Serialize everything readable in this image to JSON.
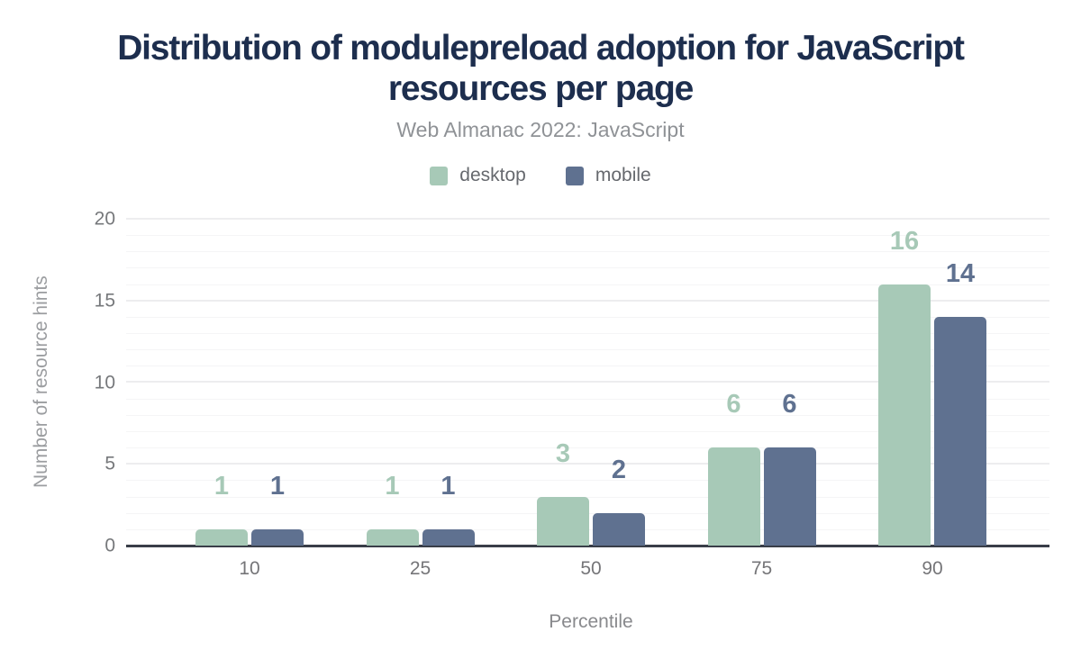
{
  "title": "Distribution of modulepreload adoption for JavaScript resources per page",
  "subtitle": "Web Almanac 2022: JavaScript",
  "chart_data": {
    "type": "bar",
    "categories": [
      "10",
      "25",
      "50",
      "75",
      "90"
    ],
    "series": [
      {
        "name": "desktop",
        "color": "#a7c9b7",
        "values": [
          1,
          1,
          3,
          6,
          16
        ]
      },
      {
        "name": "mobile",
        "color": "#5f7190",
        "values": [
          1,
          1,
          2,
          6,
          14
        ]
      }
    ],
    "title": "Distribution of modulepreload adoption for JavaScript resources per page",
    "subtitle": "Web Almanac 2022: JavaScript",
    "xlabel": "Percentile",
    "ylabel": "Number of resource hints",
    "ylim": [
      0,
      20
    ],
    "yticks": [
      0,
      5,
      10,
      15,
      20
    ],
    "grid": "horizontal, minor line every 1 unit, major line every 5 units",
    "legend_position": "top center",
    "value_labels_shown": true
  },
  "colors": {
    "background": "#ffffff",
    "title_text": "#1d2e4e",
    "subtitle_text": "#8f9296",
    "legend_text": "#66696e",
    "tick_text": "#757578",
    "axis_title_text": "#9b9da0",
    "axis_line": "#393e48",
    "grid_minor": "#f5f5f6",
    "grid_major": "#ededef"
  }
}
